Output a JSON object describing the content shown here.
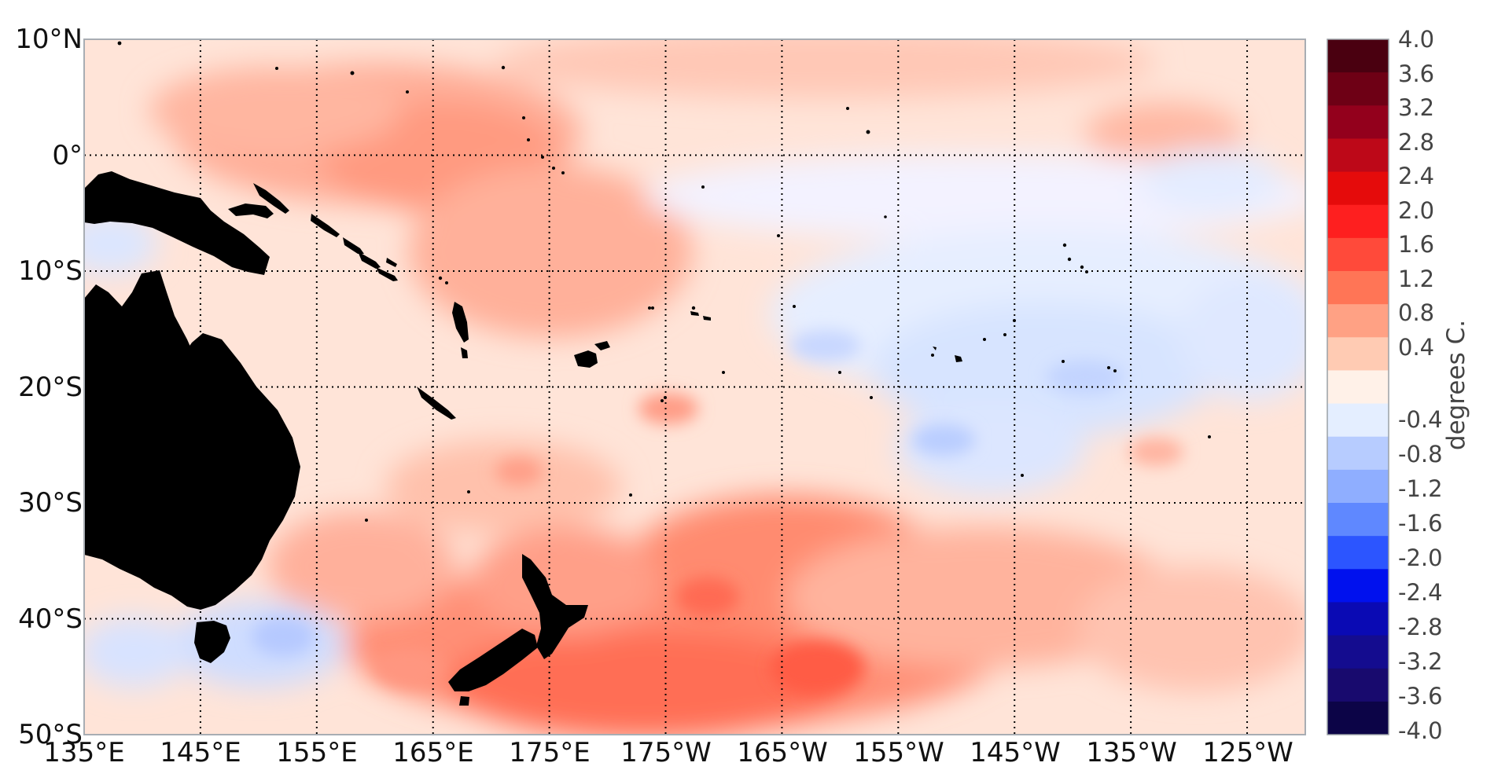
{
  "map": {
    "lat_labels": [
      "10°N",
      "0°",
      "10°S",
      "20°S",
      "30°S",
      "40°S",
      "50°S"
    ],
    "lon_labels": [
      "135°E",
      "145°E",
      "155°E",
      "165°E",
      "175°E",
      "175°W",
      "165°W",
      "155°W",
      "145°W",
      "135°W",
      "125°W"
    ],
    "lat_range": [
      -50,
      10
    ],
    "lon_range": [
      135,
      240
    ],
    "grid": "dotted",
    "land_color": "#000000"
  },
  "colorbar": {
    "unit_label": "degrees C.",
    "tick_labels": [
      "4.0",
      "3.6",
      "3.2",
      "2.8",
      "2.4",
      "2.0",
      "1.6",
      "1.2",
      "0.8",
      "0.4",
      "-0.4",
      "-0.8",
      "-1.2",
      "-1.6",
      "-2.0",
      "-2.4",
      "-2.8",
      "-3.2",
      "-3.6",
      "-4.0"
    ],
    "levels": [
      4.0,
      3.6,
      3.2,
      2.8,
      2.4,
      2.0,
      1.6,
      1.2,
      0.8,
      0.4,
      0.0,
      -0.4,
      -0.8,
      -1.2,
      -1.6,
      -2.0,
      -2.4,
      -2.8,
      -3.2,
      -3.6,
      -4.0
    ],
    "colors": [
      "#4a0010",
      "#6e0015",
      "#93001c",
      "#bd0818",
      "#e50b0b",
      "#fe1f1f",
      "#ff4a3a",
      "#ff7556",
      "#ffa184",
      "#ffcbb3",
      "#fff1e8",
      "#e4eeff",
      "#b7ccff",
      "#8faeff",
      "#5f88ff",
      "#2c55ff",
      "#0011ee",
      "#0a0ab4",
      "#140c8f",
      "#180a6e",
      "#0c0447"
    ]
  }
}
